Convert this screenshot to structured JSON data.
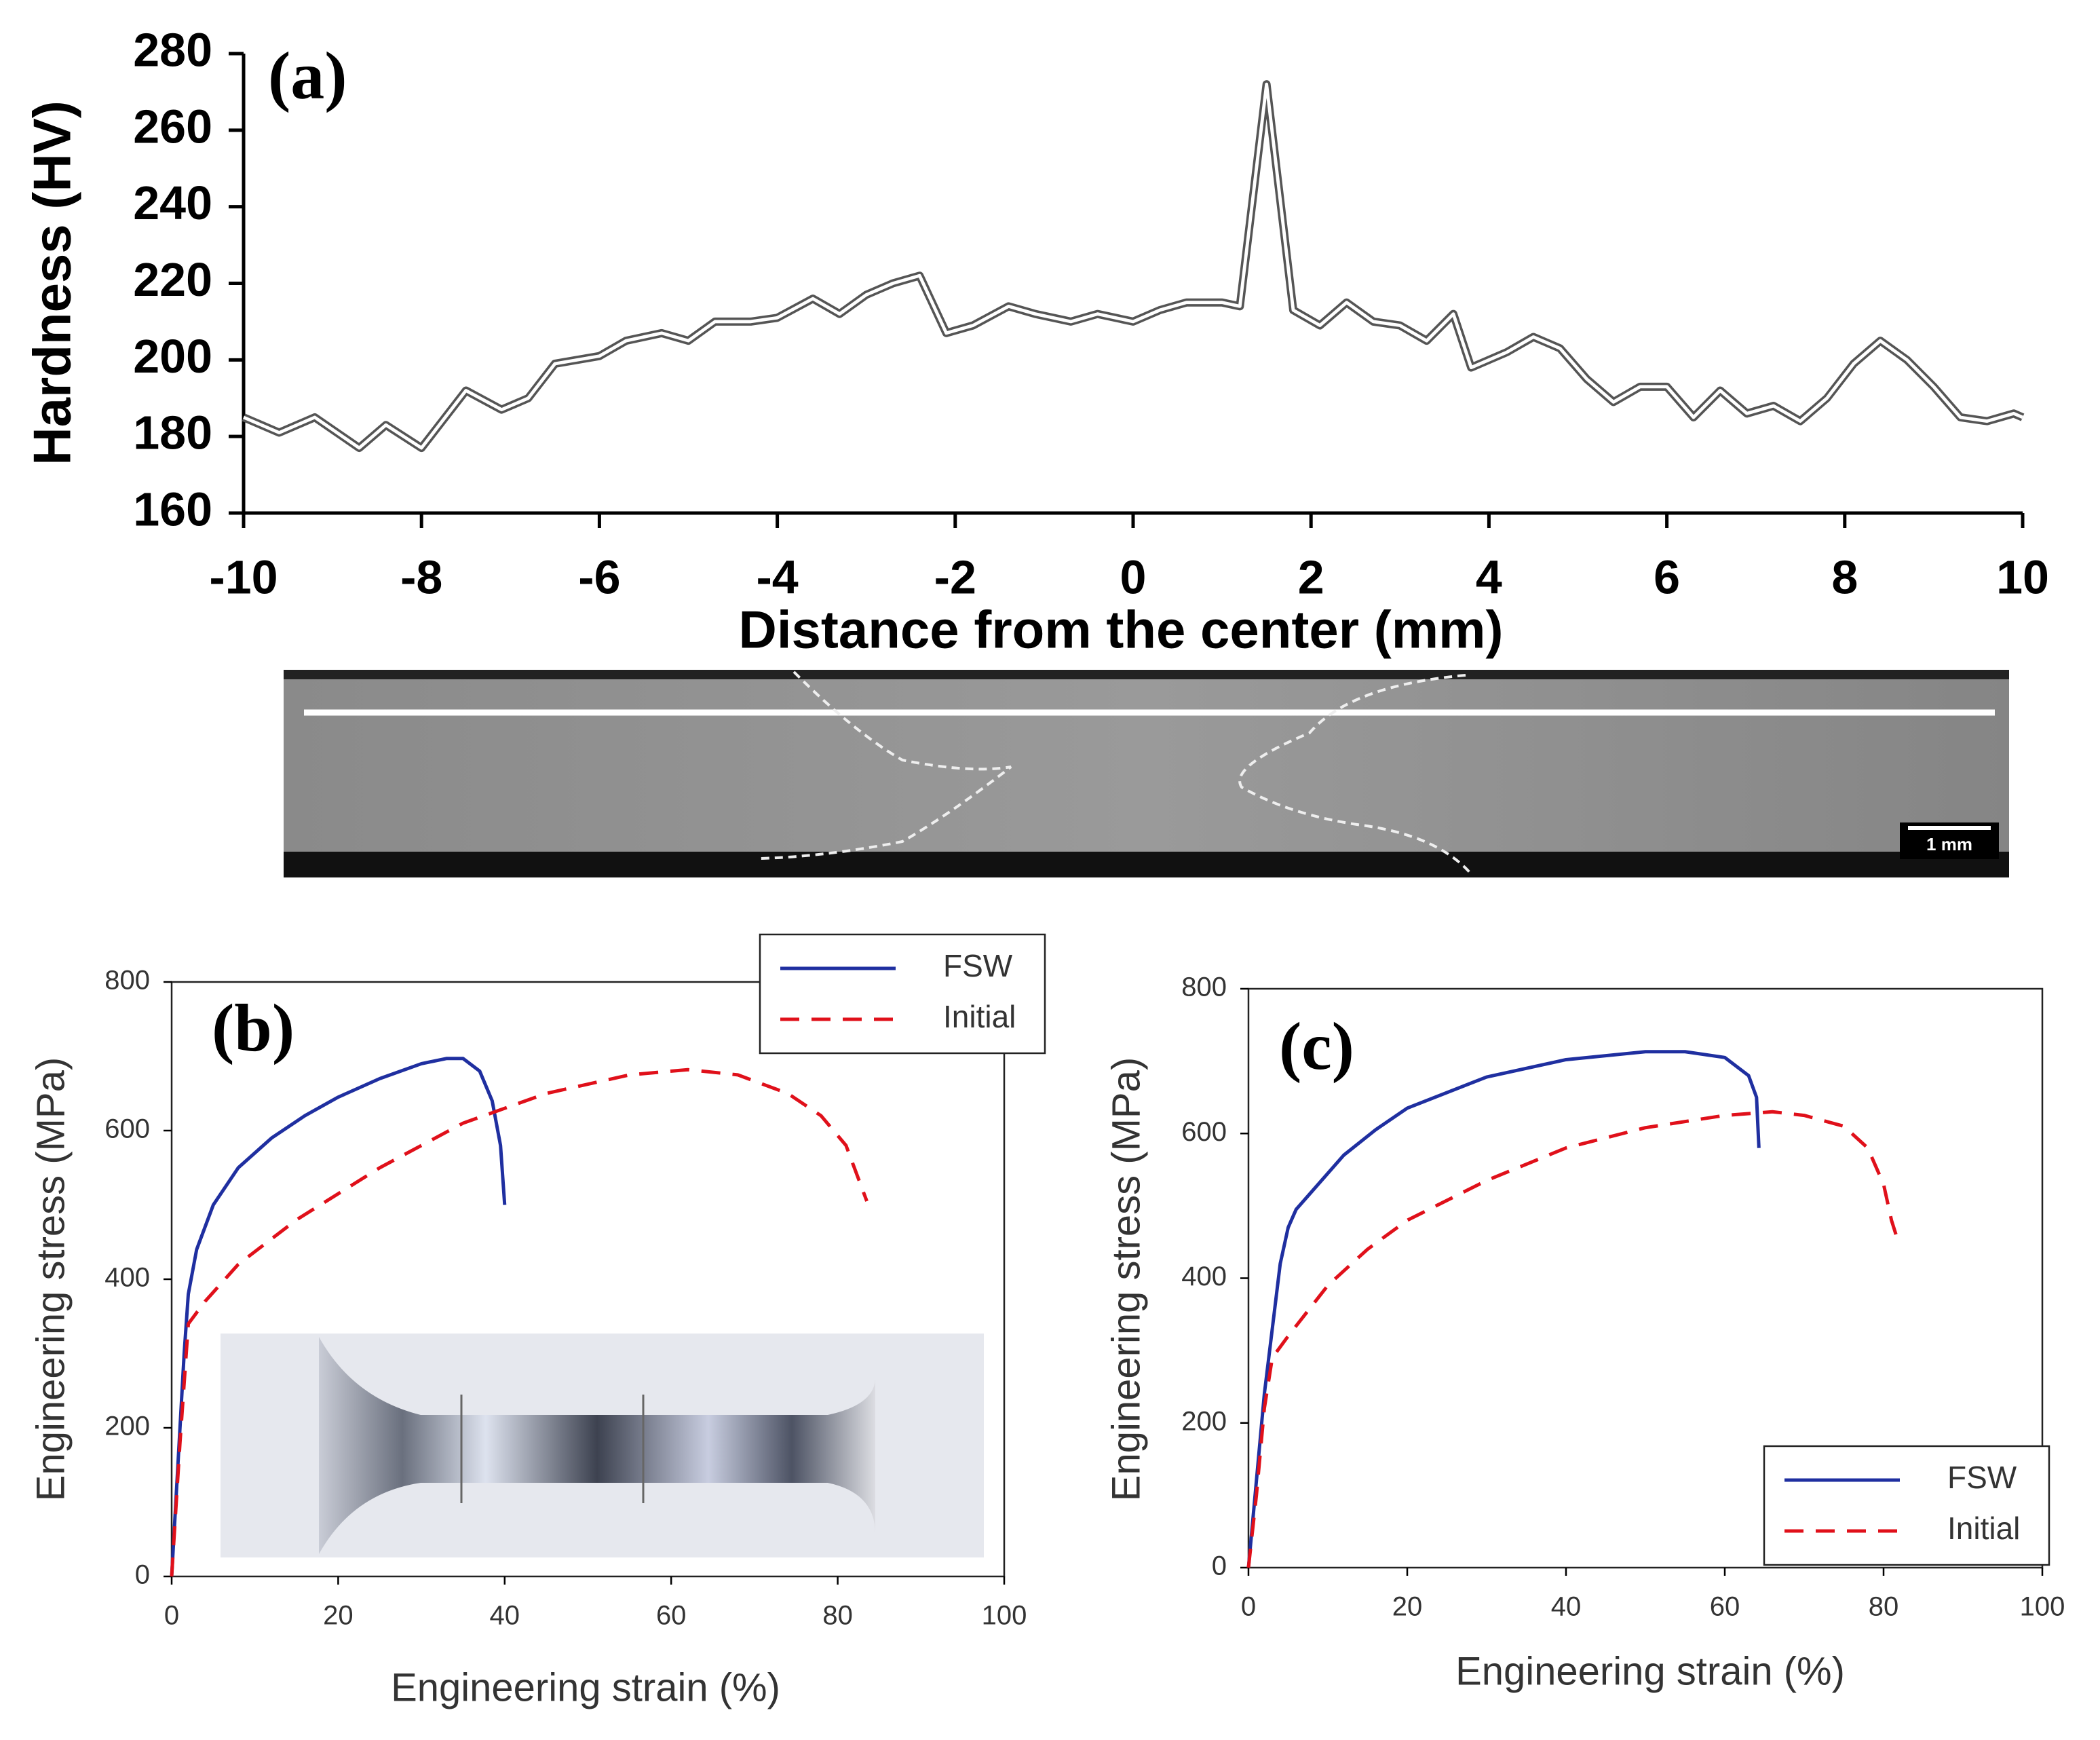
{
  "chart_data": [
    {
      "type": "line",
      "panel": "(a)",
      "xlabel": "Distance from the center (mm)",
      "ylabel": "Hardness (HV)",
      "xlim": [
        -10,
        10
      ],
      "ylim": [
        160,
        280
      ],
      "xticks": [
        -10,
        -8,
        -6,
        -4,
        -2,
        0,
        2,
        4,
        6,
        8,
        10
      ],
      "yticks": [
        160,
        180,
        200,
        220,
        240,
        260,
        280
      ],
      "series": [
        {
          "color": "#555555",
          "x": [
            -10,
            -9.6,
            -9.2,
            -8.7,
            -8.4,
            -8.0,
            -7.5,
            -7.1,
            -6.8,
            -6.5,
            -6.0,
            -5.7,
            -5.3,
            -5.0,
            -4.7,
            -4.3,
            -4.0,
            -3.6,
            -3.3,
            -3.0,
            -2.7,
            -2.4,
            -2.1,
            -1.8,
            -1.4,
            -1.1,
            -0.7,
            -0.4,
            0,
            0.3,
            0.6,
            1.0,
            1.2,
            1.5,
            1.8,
            2.1,
            2.4,
            2.7,
            3.0,
            3.3,
            3.6,
            3.8,
            4.2,
            4.5,
            4.8,
            5.1,
            5.4,
            5.7,
            6.0,
            6.3,
            6.6,
            6.9,
            7.2,
            7.5,
            7.8,
            8.1,
            8.4,
            8.7,
            9.0,
            9.3,
            9.6,
            9.9,
            10
          ],
          "values": [
            185,
            181,
            185,
            177,
            183,
            177,
            192,
            187,
            190,
            199,
            201,
            205,
            207,
            205,
            210,
            210,
            211,
            216,
            212,
            217,
            220,
            222,
            207,
            209,
            214,
            212,
            210,
            212,
            210,
            213,
            215,
            215,
            214,
            272,
            213,
            209,
            215,
            210,
            209,
            205,
            212,
            198,
            202,
            206,
            203,
            195,
            189,
            193,
            193,
            185,
            192,
            186,
            188,
            184,
            190,
            199,
            205,
            200,
            193,
            185,
            184,
            186,
            185
          ]
        }
      ]
    },
    {
      "type": "line",
      "panel": "(b)",
      "xlabel": "Engineering strain (%)",
      "ylabel": "Engineering stress (MPa)",
      "xlim": [
        0,
        100
      ],
      "ylim": [
        0,
        800
      ],
      "xticks": [
        0,
        20,
        40,
        60,
        80,
        100
      ],
      "yticks": [
        0,
        200,
        400,
        600,
        800
      ],
      "legend": "upper right outside",
      "series": [
        {
          "name": "FSW",
          "color": "#1f2fa0",
          "style": "solid",
          "x": [
            0,
            1,
            1.5,
            2,
            3,
            5,
            8,
            12,
            16,
            20,
            25,
            30,
            33,
            35,
            37,
            38.5,
            39.5,
            40
          ],
          "values": [
            0,
            200,
            300,
            380,
            440,
            500,
            550,
            590,
            620,
            645,
            670,
            690,
            697,
            697,
            680,
            640,
            580,
            500
          ]
        },
        {
          "name": "Initial",
          "color": "#e0101a",
          "style": "dashed",
          "x": [
            0,
            1,
            2,
            4,
            8,
            15,
            25,
            35,
            45,
            55,
            62,
            68,
            74,
            78,
            81,
            83.5
          ],
          "values": [
            0,
            180,
            340,
            370,
            420,
            480,
            550,
            610,
            650,
            675,
            682,
            675,
            650,
            620,
            580,
            505
          ]
        }
      ]
    },
    {
      "type": "line",
      "panel": "(c)",
      "xlabel": "Engineering strain (%)",
      "ylabel": "Engineering stress (MPa)",
      "xlim": [
        0,
        100
      ],
      "ylim": [
        0,
        800
      ],
      "xticks": [
        0,
        20,
        40,
        60,
        80,
        100
      ],
      "yticks": [
        0,
        200,
        400,
        600,
        800
      ],
      "legend": "lower right",
      "series": [
        {
          "name": "FSW",
          "color": "#1f2fa0",
          "style": "solid",
          "x": [
            0,
            1,
            2,
            3,
            4,
            5,
            6,
            8,
            12,
            16,
            20,
            30,
            40,
            50,
            55,
            60,
            63,
            64,
            64.3
          ],
          "values": [
            0,
            120,
            240,
            330,
            420,
            470,
            495,
            520,
            570,
            605,
            635,
            678,
            702,
            713,
            713,
            705,
            680,
            650,
            580
          ]
        },
        {
          "name": "Initial",
          "color": "#e0101a",
          "style": "dashed",
          "x": [
            0,
            1,
            2,
            3,
            5,
            10,
            15,
            20,
            30,
            40,
            50,
            60,
            66,
            70,
            75,
            78,
            80,
            81,
            82
          ],
          "values": [
            0,
            100,
            220,
            290,
            320,
            390,
            440,
            480,
            535,
            580,
            608,
            625,
            630,
            625,
            610,
            580,
            530,
            480,
            445
          ]
        }
      ]
    }
  ],
  "micrograph": {
    "scale_bar": "1 mm"
  }
}
